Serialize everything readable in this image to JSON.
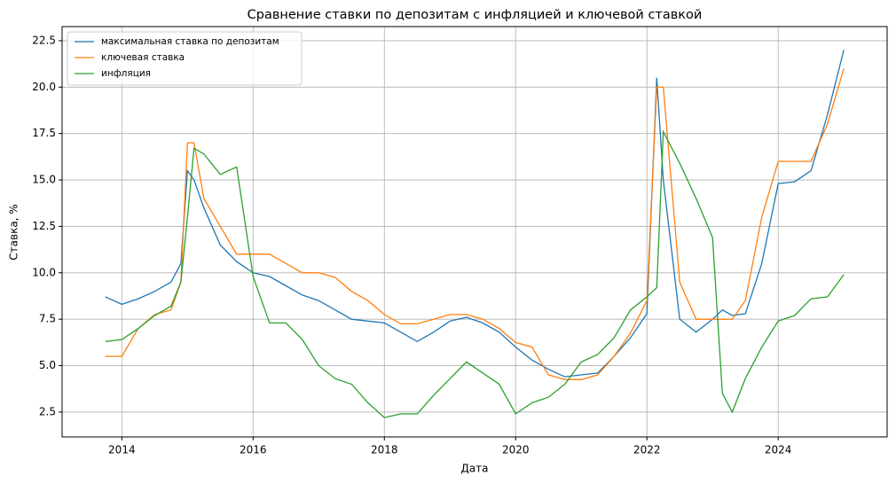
{
  "chart_data": {
    "type": "line",
    "title": "Сравнение ставки по депозитам с инфляцией и ключевой ставкой",
    "x_label": "Дата",
    "y_label": "Ставка, %",
    "x": [
      2013.75,
      2014.0,
      2014.25,
      2014.5,
      2014.75,
      2014.9,
      2015.0,
      2015.1,
      2015.25,
      2015.5,
      2015.75,
      2016.0,
      2016.25,
      2016.5,
      2016.75,
      2017.0,
      2017.25,
      2017.5,
      2017.75,
      2018.0,
      2018.25,
      2018.5,
      2018.75,
      2019.0,
      2019.25,
      2019.5,
      2019.75,
      2020.0,
      2020.25,
      2020.5,
      2020.75,
      2021.0,
      2021.25,
      2021.5,
      2021.75,
      2022.0,
      2022.15,
      2022.25,
      2022.5,
      2022.75,
      2023.0,
      2023.15,
      2023.3,
      2023.5,
      2023.75,
      2024.0,
      2024.25,
      2024.5,
      2024.75,
      2025.0
    ],
    "series": [
      {
        "name": "максимальная ставка по депозитам",
        "color": "#1f77b4",
        "values": [
          8.7,
          8.3,
          8.6,
          9.0,
          9.5,
          10.5,
          15.5,
          15.0,
          13.5,
          11.5,
          10.6,
          10.0,
          9.8,
          9.3,
          8.8,
          8.5,
          8.0,
          7.5,
          7.4,
          7.3,
          6.8,
          6.3,
          6.8,
          7.4,
          7.6,
          7.3,
          6.8,
          6.0,
          5.3,
          4.8,
          4.4,
          4.5,
          4.6,
          5.5,
          6.5,
          7.8,
          20.5,
          15.0,
          7.5,
          6.8,
          7.5,
          8.0,
          7.7,
          7.8,
          10.5,
          14.8,
          14.9,
          15.5,
          18.5,
          22.0
        ]
      },
      {
        "name": "ключевая ставка",
        "color": "#ff7f0e",
        "values": [
          5.5,
          5.5,
          7.0,
          7.75,
          8.0,
          9.5,
          17.0,
          17.0,
          14.0,
          12.5,
          11.0,
          11.0,
          11.0,
          10.5,
          10.0,
          10.0,
          9.75,
          9.0,
          8.5,
          7.75,
          7.25,
          7.25,
          7.5,
          7.75,
          7.75,
          7.5,
          7.0,
          6.25,
          6.0,
          4.5,
          4.25,
          4.25,
          4.5,
          5.5,
          6.75,
          8.5,
          20.0,
          20.0,
          9.5,
          7.5,
          7.5,
          7.5,
          7.5,
          8.5,
          13.0,
          16.0,
          16.0,
          16.0,
          18.0,
          21.0
        ]
      },
      {
        "name": "инфляция",
        "color": "#2ca02c",
        "values": [
          6.3,
          6.4,
          7.0,
          7.7,
          8.2,
          9.5,
          13.0,
          16.7,
          16.4,
          15.3,
          15.7,
          9.8,
          7.3,
          7.3,
          6.4,
          5.0,
          4.3,
          4.0,
          3.0,
          2.2,
          2.4,
          2.4,
          3.4,
          4.3,
          5.2,
          4.6,
          4.0,
          2.4,
          3.0,
          3.3,
          4.0,
          5.2,
          5.6,
          6.5,
          8.0,
          8.7,
          9.2,
          17.6,
          15.9,
          14.0,
          11.9,
          3.5,
          2.5,
          4.3,
          6.0,
          7.4,
          7.7,
          8.6,
          8.7,
          9.9
        ]
      }
    ],
    "xlim": [
      2013.09,
      2025.66
    ],
    "xticks": [
      2014,
      2016,
      2018,
      2020,
      2022,
      2024
    ],
    "ylim": [
      1.16,
      23.26
    ],
    "yticks": [
      2.5,
      {
        "value": 5,
        "label": "5.0"
      },
      7.5,
      {
        "value": 10,
        "label": "10.0"
      },
      12.5,
      {
        "value": 15,
        "label": "15.0"
      },
      17.5,
      {
        "value": 20,
        "label": "20.0"
      },
      22.5
    ],
    "grid": true,
    "legend": "upper left"
  }
}
